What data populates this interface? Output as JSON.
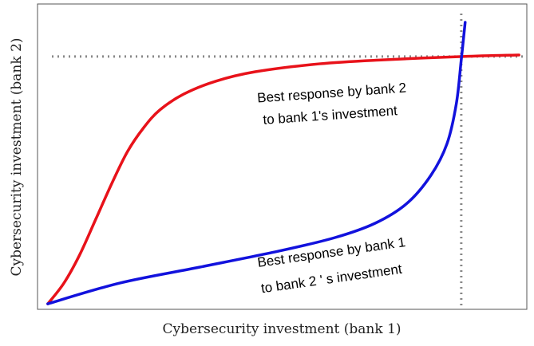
{
  "chart_data": {
    "type": "line",
    "xlabel": "Cybersecurity investment (bank 1)",
    "ylabel": "Cybersecurity investment (bank 2)",
    "xlim": [
      0,
      1
    ],
    "ylim": [
      0,
      1
    ],
    "series": [
      {
        "name": "Best response by bank 2",
        "color": "#e8121a",
        "x": [
          0.021,
          0.054,
          0.086,
          0.119,
          0.152,
          0.184,
          0.217,
          0.25,
          0.299,
          0.364,
          0.445,
          0.576,
          0.706,
          0.87,
          0.984
        ],
        "values": [
          0.018,
          0.086,
          0.178,
          0.295,
          0.413,
          0.517,
          0.595,
          0.653,
          0.705,
          0.747,
          0.778,
          0.804,
          0.817,
          0.828,
          0.833
        ]
      },
      {
        "name": "Best response by bank 1",
        "color": "#1212dd",
        "x": [
          0.021,
          0.168,
          0.331,
          0.494,
          0.608,
          0.69,
          0.755,
          0.804,
          0.837,
          0.856,
          0.866,
          0.874
        ],
        "values": [
          0.018,
          0.086,
          0.138,
          0.191,
          0.235,
          0.282,
          0.347,
          0.439,
          0.543,
          0.674,
          0.817,
          0.94
        ]
      }
    ],
    "hlines": [
      0.828
    ],
    "vlines": [
      0.866
    ],
    "annotations": [
      "Best response by bank 2",
      "to bank 1's investment",
      "Best  response   by bank 1",
      "to bank 2 ' s investment"
    ]
  }
}
